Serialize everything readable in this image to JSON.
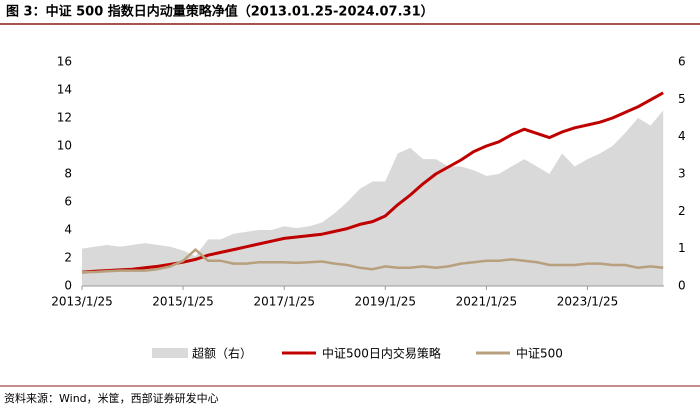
{
  "chart_data": {
    "type": "line",
    "title": "图 3：中证 500 指数日内动量策略净值（2013.01.25-2024.07.31）",
    "source": "资料来源：Wind，米筐，西部证券研发中心",
    "x": [
      "2013/1/25",
      "2013/4/25",
      "2013/7/25",
      "2013/10/25",
      "2014/1/25",
      "2014/4/25",
      "2014/7/25",
      "2014/10/25",
      "2015/1/25",
      "2015/4/25",
      "2015/7/25",
      "2015/10/25",
      "2016/1/25",
      "2016/4/25",
      "2016/7/25",
      "2016/10/25",
      "2017/1/25",
      "2017/4/25",
      "2017/7/25",
      "2017/10/25",
      "2018/1/25",
      "2018/4/25",
      "2018/7/25",
      "2018/10/25",
      "2019/1/25",
      "2019/4/25",
      "2019/7/25",
      "2019/10/25",
      "2020/1/25",
      "2020/4/25",
      "2020/7/25",
      "2020/10/25",
      "2021/1/25",
      "2021/4/25",
      "2021/7/25",
      "2021/10/25",
      "2022/1/25",
      "2022/4/25",
      "2022/7/25",
      "2022/10/25",
      "2023/1/25",
      "2023/4/25",
      "2023/7/25",
      "2023/10/25",
      "2024/1/25",
      "2024/4/25",
      "2024/7/25"
    ],
    "xlim": [
      "2013/1/25",
      "2024/7/31"
    ],
    "xticks": [
      "2013/1/25",
      "2015/1/25",
      "2017/1/25",
      "2019/1/25",
      "2021/1/25",
      "2023/1/25"
    ],
    "ylim": [
      0,
      16
    ],
    "yticks": [
      0,
      2,
      4,
      6,
      8,
      10,
      12,
      14,
      16
    ],
    "y2lim": [
      0,
      6
    ],
    "y2ticks": [
      0,
      1,
      2,
      3,
      4,
      5,
      6
    ],
    "series": [
      {
        "name": "超额（右）",
        "color": "#d9d9d9",
        "kind": "area",
        "axis": "y2",
        "values": [
          1.0,
          1.05,
          1.1,
          1.05,
          1.1,
          1.15,
          1.1,
          1.05,
          0.95,
          0.8,
          1.25,
          1.25,
          1.4,
          1.45,
          1.5,
          1.5,
          1.6,
          1.55,
          1.6,
          1.7,
          1.95,
          2.25,
          2.6,
          2.8,
          2.8,
          3.55,
          3.7,
          3.4,
          3.4,
          3.2,
          3.2,
          3.1,
          2.95,
          3.0,
          3.2,
          3.4,
          3.2,
          3.0,
          3.55,
          3.2,
          3.4,
          3.55,
          3.75,
          4.1,
          4.5,
          4.3,
          4.7
        ]
      },
      {
        "name": "中证500日内交易策略",
        "color": "#c00000",
        "kind": "line",
        "values": [
          1.0,
          1.05,
          1.1,
          1.15,
          1.2,
          1.3,
          1.4,
          1.55,
          1.7,
          1.9,
          2.2,
          2.4,
          2.6,
          2.8,
          3.0,
          3.2,
          3.4,
          3.5,
          3.6,
          3.7,
          3.9,
          4.1,
          4.4,
          4.6,
          5.0,
          5.8,
          6.5,
          7.3,
          8.0,
          8.5,
          9.0,
          9.6,
          10.0,
          10.3,
          10.8,
          11.2,
          10.9,
          10.6,
          11.0,
          11.3,
          11.5,
          11.7,
          12.0,
          12.4,
          12.8,
          13.3,
          13.8
        ]
      },
      {
        "name": "中证500",
        "color": "#b8a07e",
        "kind": "line",
        "values": [
          1.0,
          1.0,
          1.05,
          1.1,
          1.1,
          1.1,
          1.2,
          1.4,
          1.8,
          2.6,
          1.8,
          1.8,
          1.6,
          1.6,
          1.7,
          1.7,
          1.7,
          1.65,
          1.7,
          1.75,
          1.6,
          1.5,
          1.3,
          1.2,
          1.4,
          1.3,
          1.3,
          1.4,
          1.3,
          1.4,
          1.6,
          1.7,
          1.8,
          1.8,
          1.9,
          1.8,
          1.7,
          1.5,
          1.5,
          1.5,
          1.6,
          1.6,
          1.5,
          1.5,
          1.3,
          1.4,
          1.3
        ]
      }
    ]
  }
}
